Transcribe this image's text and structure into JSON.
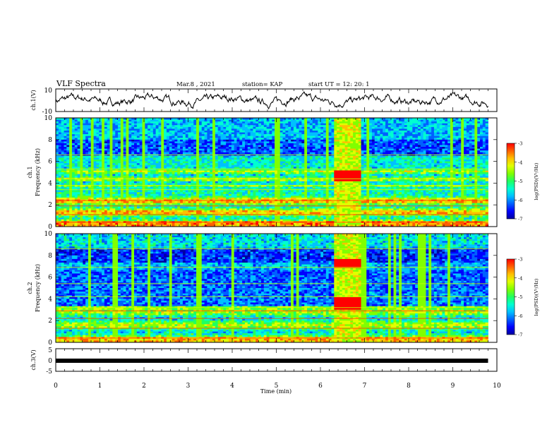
{
  "header": {
    "title": "VLF Spectra",
    "date": "Mar.8 , 2021",
    "station": "station= KAP",
    "start": "start  UT  =   12: 20: 1"
  },
  "colors": {
    "colormap": [
      "#0000a0",
      "#0000ff",
      "#0060ff",
      "#00c0ff",
      "#00ffd0",
      "#20ff60",
      "#80ff00",
      "#e0ff00",
      "#ffc000",
      "#ff6000",
      "#ff0000"
    ],
    "trace": "#000000"
  },
  "chart_data": [
    {
      "type": "line",
      "panel": "ch1-waveform",
      "ylabel": "ch.1(V)",
      "ylim": [
        -10,
        10
      ],
      "yticks": [
        "10",
        "-10"
      ],
      "xlim": [
        0,
        10
      ],
      "noise_amplitude_v": 4
    },
    {
      "type": "heatmap",
      "panel": "ch1-spectrogram",
      "ylabel": "ch.1\nFrequency (kHz)",
      "ylim": [
        0,
        10
      ],
      "yticks": [
        "0",
        "2",
        "4",
        "6",
        "8",
        "10"
      ],
      "xlim": [
        0,
        10
      ],
      "data_end_min": 9.8,
      "burst_interval_min": [
        6.3,
        6.9
      ],
      "colorbar": {
        "label": "log(PSD)(V²/Hz)",
        "range": [
          -7,
          -3
        ],
        "ticks": [
          "-3",
          "-4",
          "-5",
          "-6",
          "-7"
        ]
      }
    },
    {
      "type": "heatmap",
      "panel": "ch2-spectrogram",
      "ylabel": "ch.2\nFrequency (kHz)",
      "ylim": [
        0,
        10
      ],
      "yticks": [
        "0",
        "2",
        "4",
        "6",
        "8",
        "10"
      ],
      "xlim": [
        0,
        10
      ],
      "data_end_min": 9.8,
      "burst_interval_min": [
        6.3,
        6.9
      ],
      "colorbar": {
        "label": "log(PSD)(V²/Hz)",
        "range": [
          -7,
          -3
        ],
        "ticks": [
          "-3",
          "-4",
          "-5",
          "-6",
          "-7"
        ]
      }
    },
    {
      "type": "line",
      "panel": "ch3-waveform",
      "ylabel": "ch.3(V)",
      "ylim": [
        -5,
        5
      ],
      "yticks": [
        "5",
        "0",
        "-5"
      ],
      "xlim": [
        0,
        10
      ],
      "constant_value_v": 0
    }
  ],
  "xaxis": {
    "label": "Time (min)",
    "ticks": [
      "0",
      "1",
      "2",
      "3",
      "4",
      "5",
      "6",
      "7",
      "8",
      "9",
      "10"
    ]
  }
}
